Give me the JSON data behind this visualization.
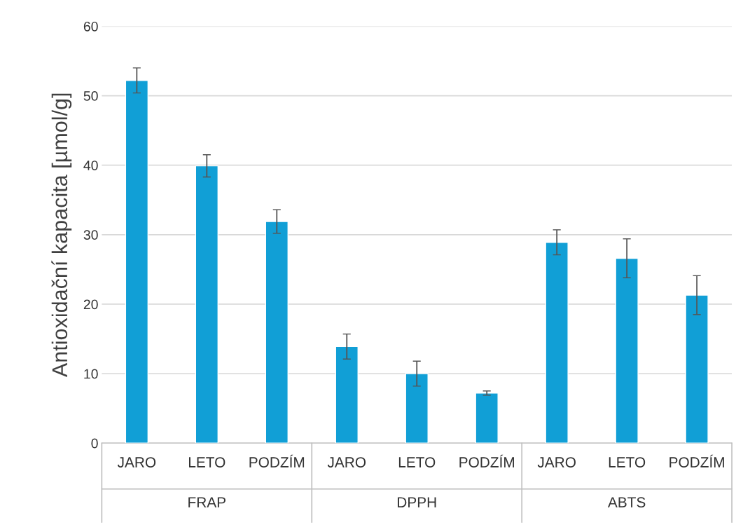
{
  "chart_data": {
    "type": "bar",
    "ylabel": "Antioxidační kapacita [µmol/g]",
    "categories": [
      "JARO",
      "LETO",
      "PODZÍM",
      "JARO",
      "LETO",
      "PODZÍM",
      "JARO",
      "LETO",
      "PODZÍM"
    ],
    "values": [
      52.2,
      39.9,
      31.9,
      13.9,
      10.0,
      7.2,
      28.9,
      26.6,
      21.3
    ],
    "errors": [
      1.8,
      1.6,
      1.7,
      1.8,
      1.8,
      0.3,
      1.8,
      2.8,
      2.8
    ],
    "color": "#119fd6",
    "annotations": [
      "FRAP",
      "DPPH",
      "ABTS"
    ],
    "ylim": [
      0,
      60
    ],
    "yticks": [
      0,
      10,
      20,
      30,
      40,
      50,
      60
    ],
    "grid": "y"
  }
}
